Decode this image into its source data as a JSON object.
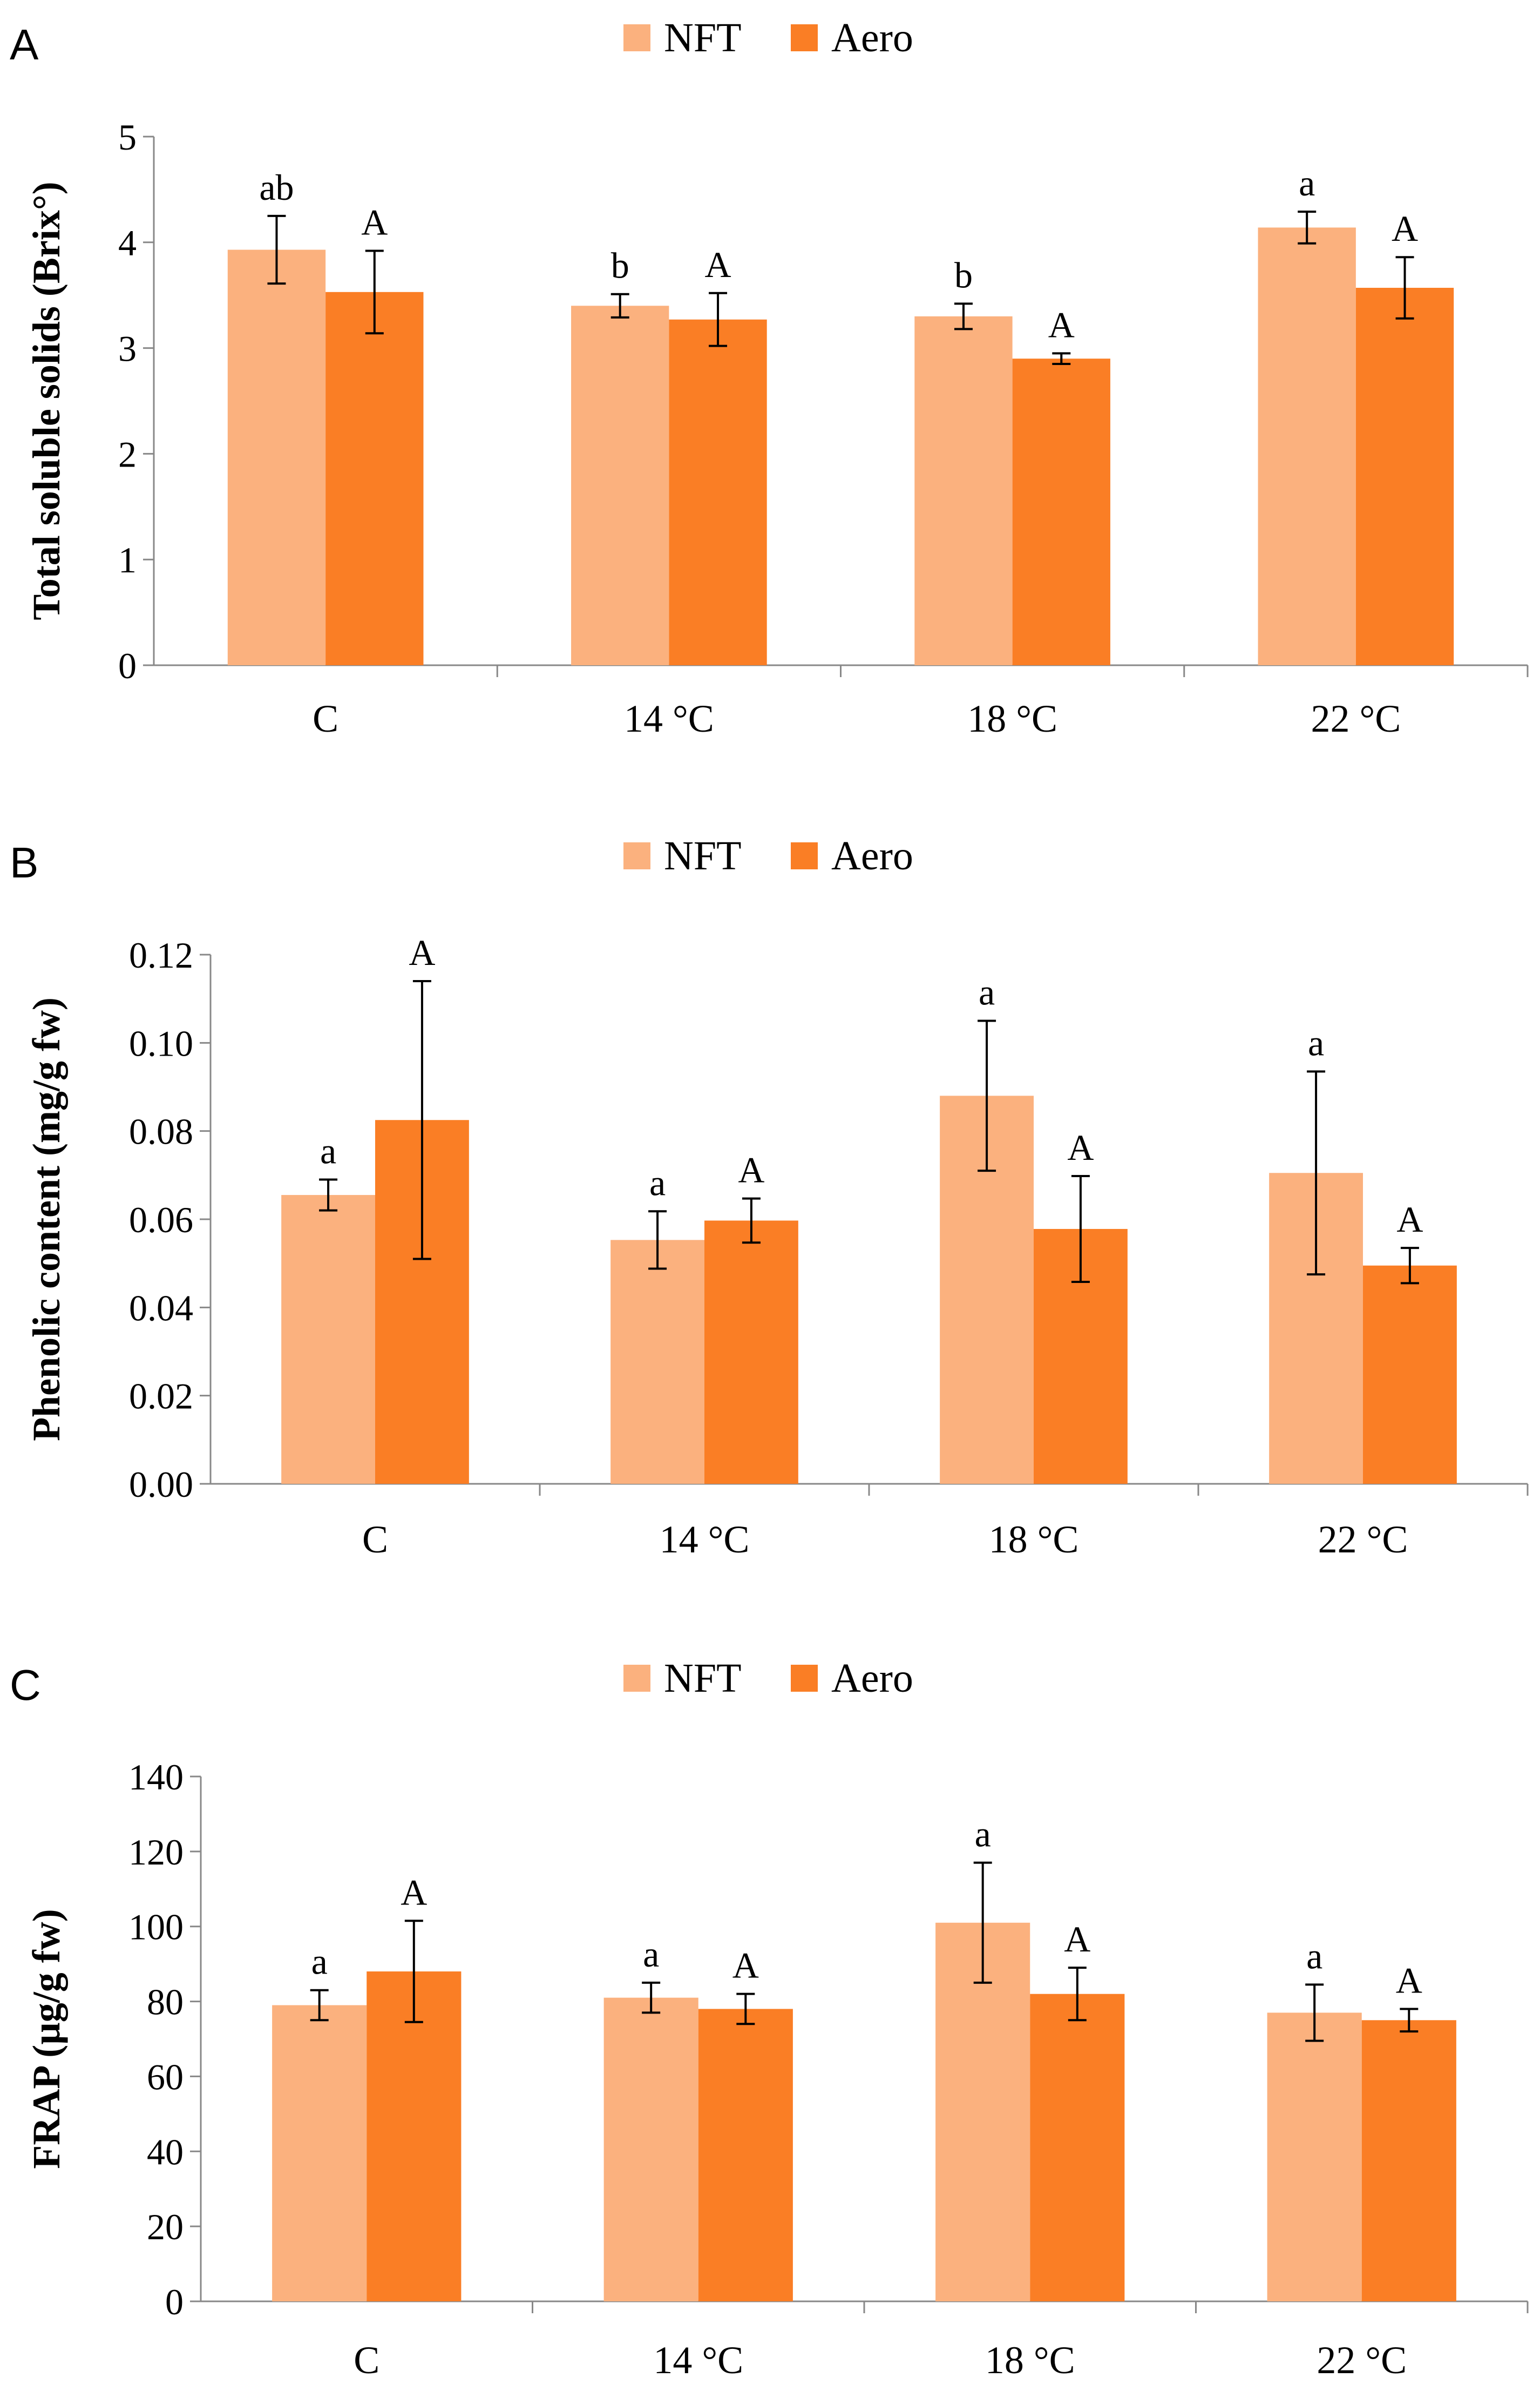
{
  "figure": {
    "colors": {
      "NFT": "#FBB17E",
      "Aero": "#FA7E25",
      "axis": "#888888"
    },
    "legend": [
      "NFT",
      "Aero"
    ]
  },
  "chart_data": [
    {
      "panel": "A",
      "type": "bar",
      "ylabel": "Total soluble solids (Brix°)",
      "categories": [
        "C",
        "14 °C",
        "18 °C",
        "22 °C"
      ],
      "ylim": [
        0,
        5
      ],
      "yticks": [
        "0",
        "1",
        "2",
        "3",
        "4",
        "5"
      ],
      "ytick_values": [
        0,
        1,
        2,
        3,
        4,
        5
      ],
      "series": [
        {
          "name": "NFT",
          "values": [
            3.93,
            3.4,
            3.3,
            4.14
          ],
          "errors": [
            0.32,
            0.11,
            0.12,
            0.15
          ],
          "labels": [
            "ab",
            "b",
            "b",
            "a"
          ]
        },
        {
          "name": "Aero",
          "values": [
            3.53,
            3.27,
            2.9,
            3.57
          ],
          "errors": [
            0.39,
            0.25,
            0.05,
            0.29
          ],
          "labels": [
            "A",
            "A",
            "A",
            "A"
          ]
        }
      ]
    },
    {
      "panel": "B",
      "type": "bar",
      "ylabel": "Phenolic content (mg/g fw)",
      "categories": [
        "C",
        "14 °C",
        "18 °C",
        "22 °C"
      ],
      "ylim": [
        0,
        0.12
      ],
      "yticks": [
        "0.00",
        "0.02",
        "0.04",
        "0.06",
        "0.08",
        "0.10",
        "0.12"
      ],
      "ytick_values": [
        0,
        0.02,
        0.04,
        0.06,
        0.08,
        0.1,
        0.12
      ],
      "series": [
        {
          "name": "NFT",
          "values": [
            0.0655,
            0.0553,
            0.088,
            0.0705
          ],
          "errors": [
            0.0035,
            0.0065,
            0.017,
            0.023
          ],
          "labels": [
            "a",
            "a",
            "a",
            "a"
          ]
        },
        {
          "name": "Aero",
          "values": [
            0.0825,
            0.0597,
            0.0578,
            0.0495
          ],
          "errors": [
            0.0315,
            0.005,
            0.012,
            0.004
          ],
          "labels": [
            "A",
            "A",
            "A",
            "A"
          ]
        }
      ]
    },
    {
      "panel": "C",
      "type": "bar",
      "ylabel": "FRAP (µg/g fw)",
      "categories": [
        "C",
        "14 °C",
        "18 °C",
        "22 °C"
      ],
      "ylim": [
        0,
        140
      ],
      "yticks": [
        "0",
        "20",
        "40",
        "60",
        "80",
        "100",
        "120",
        "140"
      ],
      "ytick_values": [
        0,
        20,
        40,
        60,
        80,
        100,
        120,
        140
      ],
      "series": [
        {
          "name": "NFT",
          "values": [
            79,
            81,
            101,
            77
          ],
          "errors": [
            4,
            4,
            16,
            7.5
          ],
          "labels": [
            "a",
            "a",
            "a",
            "a"
          ]
        },
        {
          "name": "Aero",
          "values": [
            88,
            78,
            82,
            75
          ],
          "errors": [
            13.5,
            4,
            7,
            3
          ],
          "labels": [
            "A",
            "A",
            "A",
            "A"
          ]
        }
      ]
    }
  ]
}
